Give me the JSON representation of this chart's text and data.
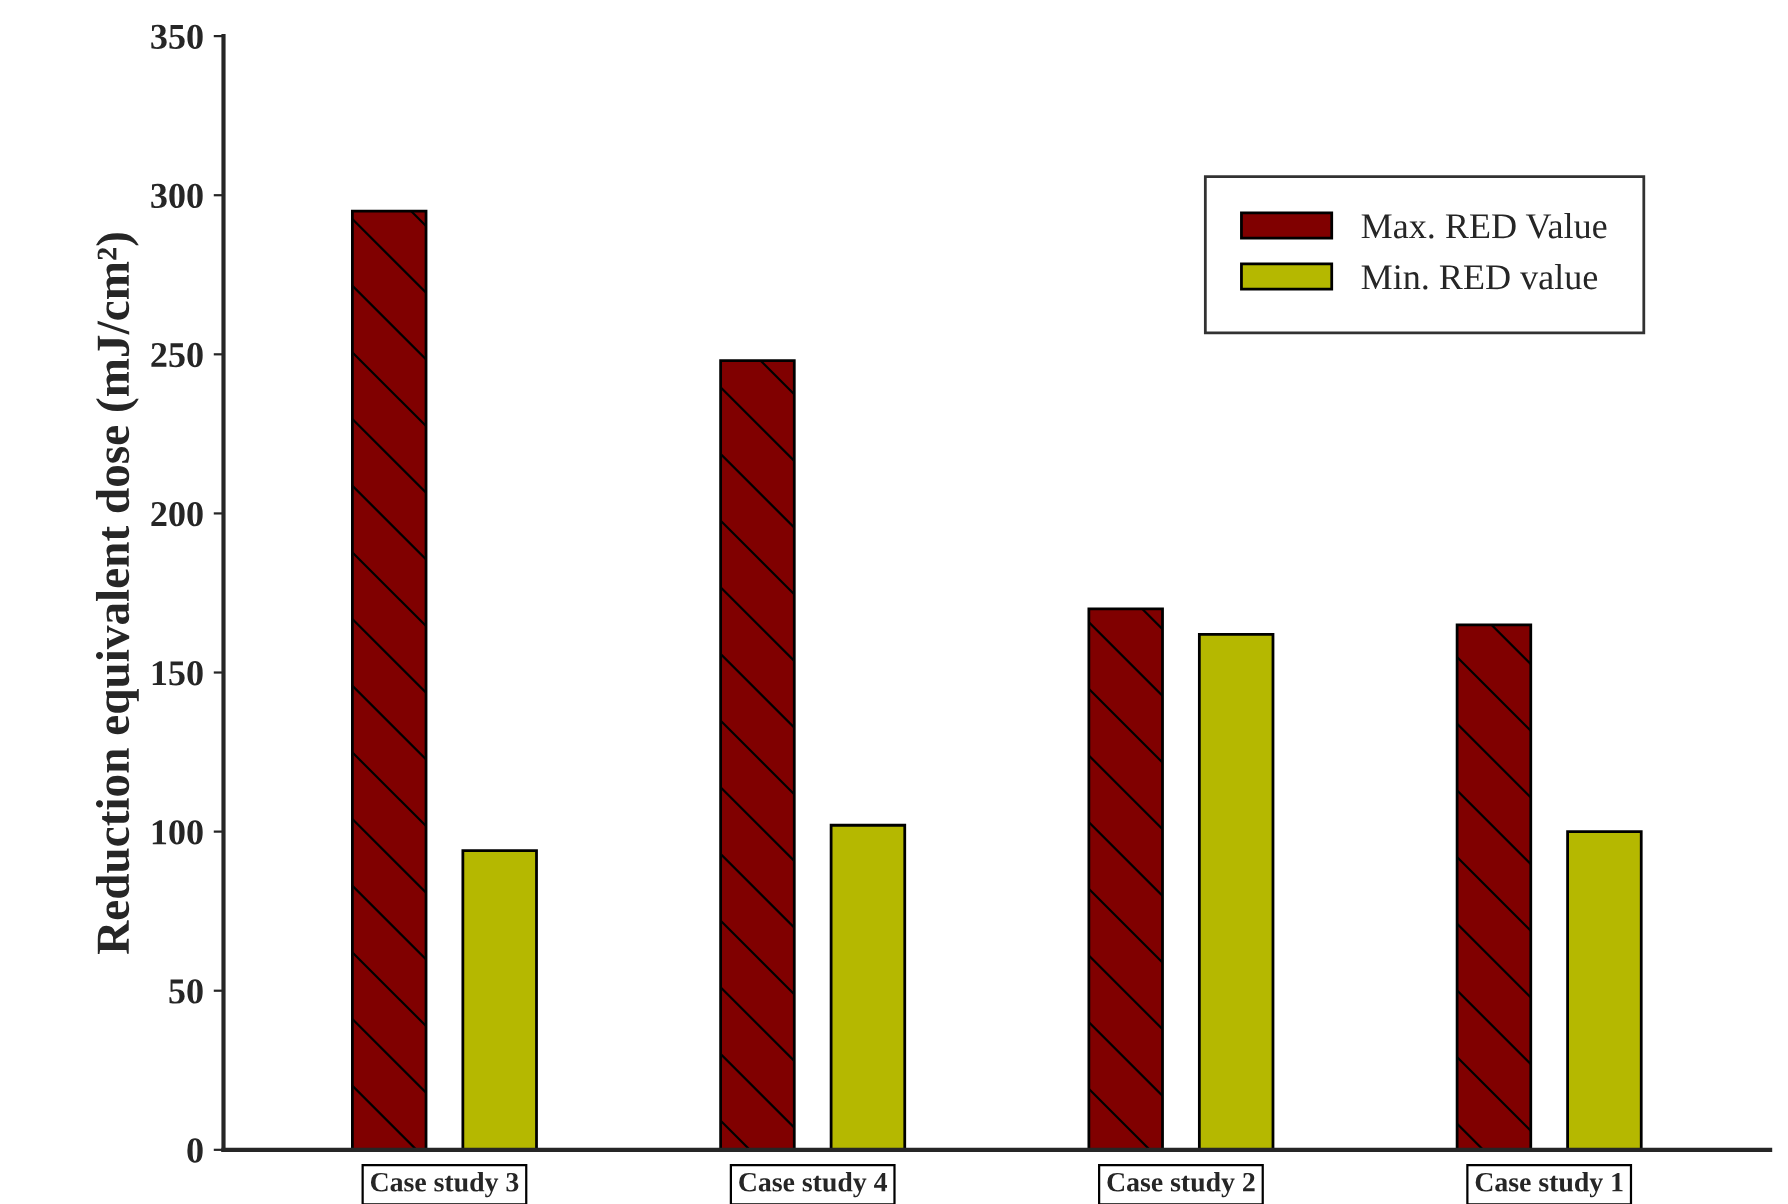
{
  "chart_data": {
    "type": "bar",
    "ylabel": "Reduction equivalent dose (mJ/cm²)",
    "categories": [
      "Case study 3",
      "Case study 4",
      "Case study 2",
      "Case study 1"
    ],
    "series": [
      {
        "name": "Max. RED Value",
        "color": "#800000",
        "values": [
          295,
          248,
          170,
          165
        ]
      },
      {
        "name": "Min. RED value",
        "color": "#b5b800",
        "values": [
          94,
          102,
          162,
          100
        ]
      }
    ],
    "ylim": [
      0,
      350
    ],
    "yticks": [
      0,
      50,
      100,
      150,
      200,
      250,
      300,
      350
    ],
    "grid": false,
    "legend": "top right"
  }
}
